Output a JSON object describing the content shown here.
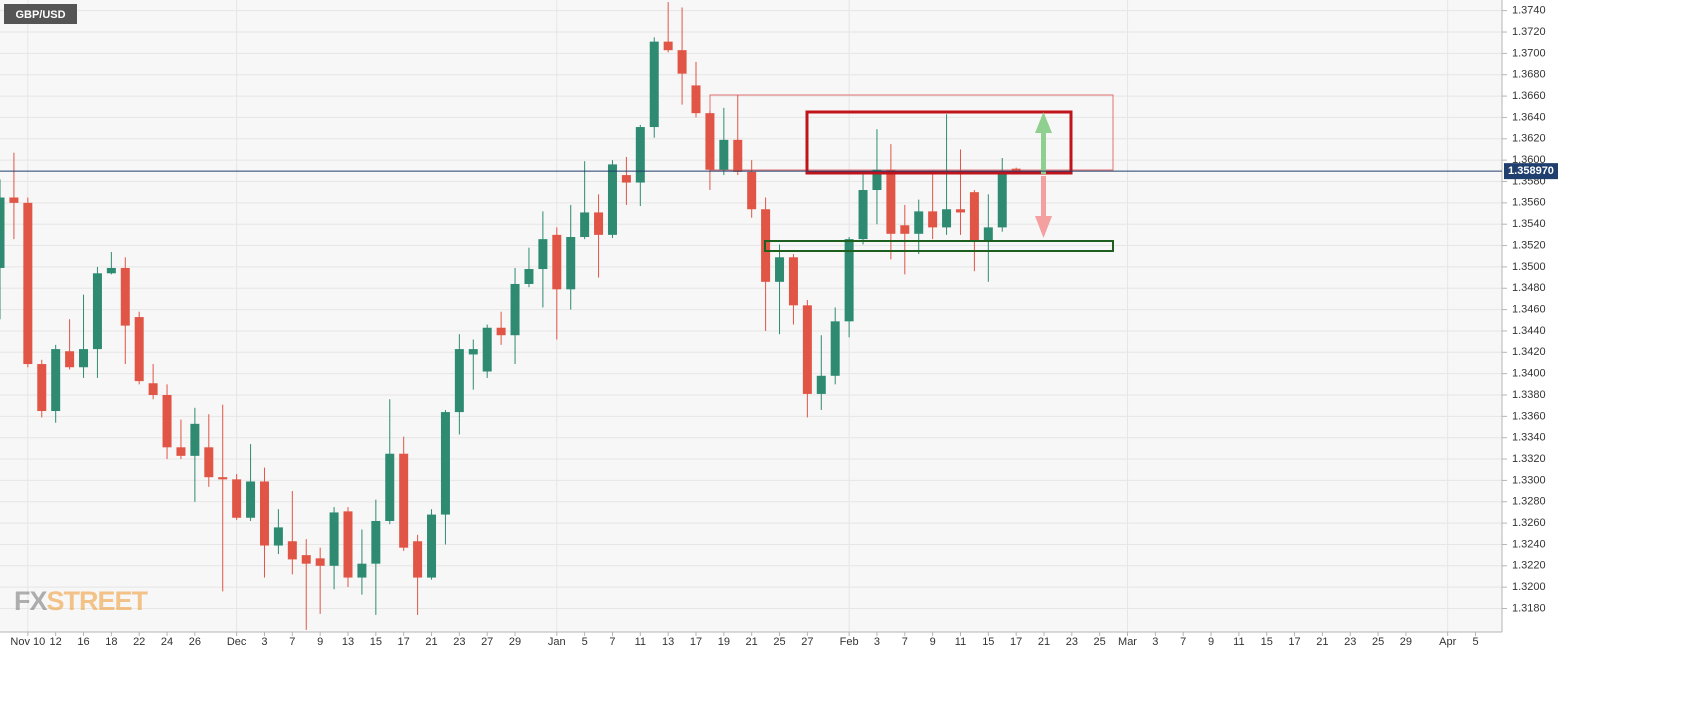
{
  "chart_data": {
    "type": "candlestick",
    "title": "GBP/USD",
    "watermark_parts": [
      "FX",
      "STREET"
    ],
    "categories": [
      null,
      null,
      "Nov 10",
      null,
      "12",
      null,
      "16",
      null,
      "18",
      null,
      "22",
      null,
      "24",
      null,
      "26",
      null,
      null,
      "Dec",
      null,
      "3",
      null,
      "7",
      null,
      "9",
      null,
      "13",
      null,
      "15",
      null,
      "17",
      null,
      "21",
      null,
      "23",
      null,
      "27",
      null,
      "29",
      null,
      null,
      "Jan",
      null,
      "5",
      null,
      "7",
      null,
      "11",
      null,
      "13",
      null,
      "17",
      null,
      "19",
      null,
      "21",
      null,
      "25",
      null,
      "27",
      null,
      null,
      "Feb",
      null,
      "3",
      null,
      "7",
      null,
      "9",
      null,
      "11",
      null,
      "15",
      null,
      "17",
      null,
      "21",
      null,
      "23",
      null,
      "25",
      null,
      "Mar",
      null,
      "3",
      null,
      "7",
      null,
      "9",
      null,
      "11",
      null,
      "15",
      null,
      "17",
      null,
      "21",
      null,
      "23",
      null,
      "25",
      null,
      "29",
      null,
      null,
      "Apr",
      null,
      "5"
    ],
    "open": [
      1.3499,
      1.3565,
      1.356,
      1.3409,
      1.3365,
      1.3421,
      1.3406,
      1.3423,
      1.3494,
      1.3499,
      1.3453,
      1.3391,
      1.338,
      1.3331,
      1.3323,
      1.3331,
      1.3303,
      1.3301,
      1.3265,
      1.3299,
      1.3239,
      1.3243,
      1.323,
      1.3227,
      1.322,
      1.3271,
      1.3209,
      1.3222,
      1.3262,
      1.3325,
      1.3243,
      1.3209,
      1.3268,
      1.3364,
      1.3418,
      1.3402,
      1.3443,
      1.3436,
      1.3484,
      1.3498,
      1.353,
      1.3479,
      1.3528,
      1.3551,
      1.353,
      1.3586,
      1.3579,
      1.3631,
      1.3711,
      1.3703,
      1.367,
      1.3644,
      1.3591,
      1.3619,
      1.3589,
      1.3554,
      1.3486,
      1.3509,
      1.3464,
      1.3381,
      1.3398,
      1.3449,
      1.3526,
      1.3572,
      1.3591,
      1.3539,
      1.3531,
      1.3552,
      1.3537,
      1.3554,
      1.357,
      1.3524,
      1.3537,
      1.3592,
      null,
      null,
      null,
      null,
      null,
      null,
      null,
      null,
      null,
      null,
      null,
      null,
      null,
      null,
      null,
      null,
      null,
      null,
      null,
      null,
      null,
      null,
      null,
      null,
      null,
      null,
      null,
      null,
      null,
      null,
      null,
      null,
      null
    ],
    "high": [
      1.3582,
      1.3607,
      1.3565,
      1.3413,
      1.3427,
      1.3451,
      1.3474,
      1.35,
      1.3514,
      1.3509,
      1.3458,
      1.3409,
      1.339,
      1.3357,
      1.3368,
      1.3362,
      1.3371,
      1.3306,
      1.3334,
      1.3312,
      1.3273,
      1.329,
      1.3245,
      1.3237,
      1.3275,
      1.3275,
      1.3254,
      1.3282,
      1.3376,
      1.3341,
      1.3249,
      1.3273,
      1.3366,
      1.3437,
      1.3432,
      1.3446,
      1.3458,
      1.3499,
      1.3518,
      1.3552,
      1.3537,
      1.3558,
      1.3599,
      1.3568,
      1.36,
      1.3603,
      1.3633,
      1.3715,
      1.3748,
      1.3743,
      1.3692,
      1.3646,
      1.3649,
      1.3661,
      1.36,
      1.3565,
      1.3521,
      1.3512,
      1.3469,
      1.3436,
      1.3462,
      1.3528,
      1.3589,
      1.3629,
      1.3615,
      1.3558,
      1.3563,
      1.3587,
      1.3643,
      1.361,
      1.3572,
      1.3568,
      1.3602,
      1.3593,
      null,
      null,
      null,
      null,
      null,
      null,
      null,
      null,
      null,
      null,
      null,
      null,
      null,
      null,
      null,
      null,
      null,
      null,
      null,
      null,
      null,
      null,
      null,
      null,
      null,
      null,
      null,
      null,
      null,
      null,
      null,
      null,
      null
    ],
    "low": [
      1.3451,
      1.3526,
      1.3406,
      1.3359,
      1.3354,
      1.3404,
      1.3396,
      1.3396,
      1.3493,
      1.3409,
      1.339,
      1.3376,
      1.332,
      1.332,
      1.328,
      1.3294,
      1.3196,
      1.3263,
      1.3262,
      1.3209,
      1.3231,
      1.3212,
      1.316,
      1.3175,
      1.3198,
      1.32,
      1.3193,
      1.3174,
      1.3259,
      1.3234,
      1.3174,
      1.3207,
      1.324,
      1.3343,
      1.3385,
      1.3396,
      1.3427,
      1.3409,
      1.3481,
      1.3462,
      1.3432,
      1.346,
      1.3526,
      1.349,
      1.3527,
      1.3558,
      1.3557,
      1.3621,
      1.3701,
      1.3652,
      1.364,
      1.3572,
      1.3586,
      1.3586,
      1.3546,
      1.344,
      1.3437,
      1.3446,
      1.3359,
      1.3366,
      1.339,
      1.3434,
      1.3521,
      1.354,
      1.3507,
      1.3493,
      1.3512,
      1.3526,
      1.353,
      1.353,
      1.3496,
      1.3486,
      1.3533,
      1.3588,
      null,
      null,
      null,
      null,
      null,
      null,
      null,
      null,
      null,
      null,
      null,
      null,
      null,
      null,
      null,
      null,
      null,
      null,
      null,
      null,
      null,
      null,
      null,
      null,
      null,
      null,
      null,
      null,
      null,
      null,
      null,
      null,
      null
    ],
    "close": [
      1.3565,
      1.356,
      1.3409,
      1.3365,
      1.3423,
      1.3406,
      1.3423,
      1.3494,
      1.3499,
      1.3445,
      1.3393,
      1.338,
      1.3331,
      1.3323,
      1.3353,
      1.3303,
      1.3301,
      1.3265,
      1.3299,
      1.3239,
      1.3256,
      1.3226,
      1.3222,
      1.322,
      1.327,
      1.3209,
      1.3222,
      1.3262,
      1.3325,
      1.3237,
      1.3209,
      1.3268,
      1.3364,
      1.3423,
      1.3423,
      1.3443,
      1.3436,
      1.3484,
      1.3498,
      1.3526,
      1.3479,
      1.3528,
      1.3551,
      1.353,
      1.3596,
      1.3579,
      1.3631,
      1.3711,
      1.3703,
      1.3681,
      1.3644,
      1.3591,
      1.3619,
      1.3589,
      1.3554,
      1.3486,
      1.3509,
      1.3464,
      1.3381,
      1.3398,
      1.3449,
      1.3526,
      1.3572,
      1.3591,
      1.3531,
      1.3531,
      1.3552,
      1.3537,
      1.3554,
      1.3551,
      1.3524,
      1.3537,
      1.3589,
      1.3589,
      null,
      null,
      null,
      null,
      null,
      null,
      null,
      null,
      null,
      null,
      null,
      null,
      null,
      null,
      null,
      null,
      null,
      null,
      null,
      null,
      null,
      null,
      null,
      null,
      null,
      null,
      null,
      null,
      null,
      null,
      null,
      null,
      null
    ],
    "up_color": "#2e8b72",
    "down_color": "#e05545",
    "ylim": [
      1.3158,
      1.375
    ],
    "yticks": [
      {
        "value": 1.318,
        "label": "1.3180"
      },
      {
        "value": 1.32,
        "label": "1.3200"
      },
      {
        "value": 1.322,
        "label": "1.3220"
      },
      {
        "value": 1.324,
        "label": "1.3240"
      },
      {
        "value": 1.326,
        "label": "1.3260"
      },
      {
        "value": 1.328,
        "label": "1.3280"
      },
      {
        "value": 1.33,
        "label": "1.3300"
      },
      {
        "value": 1.332,
        "label": "1.3320"
      },
      {
        "value": 1.334,
        "label": "1.3340"
      },
      {
        "value": 1.336,
        "label": "1.3360"
      },
      {
        "value": 1.338,
        "label": "1.3380"
      },
      {
        "value": 1.34,
        "label": "1.3400"
      },
      {
        "value": 1.342,
        "label": "1.3420"
      },
      {
        "value": 1.344,
        "label": "1.3440"
      },
      {
        "value": 1.346,
        "label": "1.3460"
      },
      {
        "value": 1.348,
        "label": "1.3480"
      },
      {
        "value": 1.35,
        "label": "1.3500"
      },
      {
        "value": 1.352,
        "label": "1.3520"
      },
      {
        "value": 1.354,
        "label": "1.3540"
      },
      {
        "value": 1.356,
        "label": "1.3560"
      },
      {
        "value": 1.358,
        "label": "1.3580"
      },
      {
        "value": 1.36,
        "label": "1.3600"
      },
      {
        "value": 1.362,
        "label": "1.3620"
      },
      {
        "value": 1.364,
        "label": "1.3640"
      },
      {
        "value": 1.366,
        "label": "1.3660"
      },
      {
        "value": 1.368,
        "label": "1.3680"
      },
      {
        "value": 1.37,
        "label": "1.3700"
      },
      {
        "value": 1.372,
        "label": "1.3720"
      },
      {
        "value": 1.374,
        "label": "1.3740"
      }
    ],
    "last_price": {
      "value": 1.35897,
      "label": "1.358970"
    },
    "grid": true
  }
}
